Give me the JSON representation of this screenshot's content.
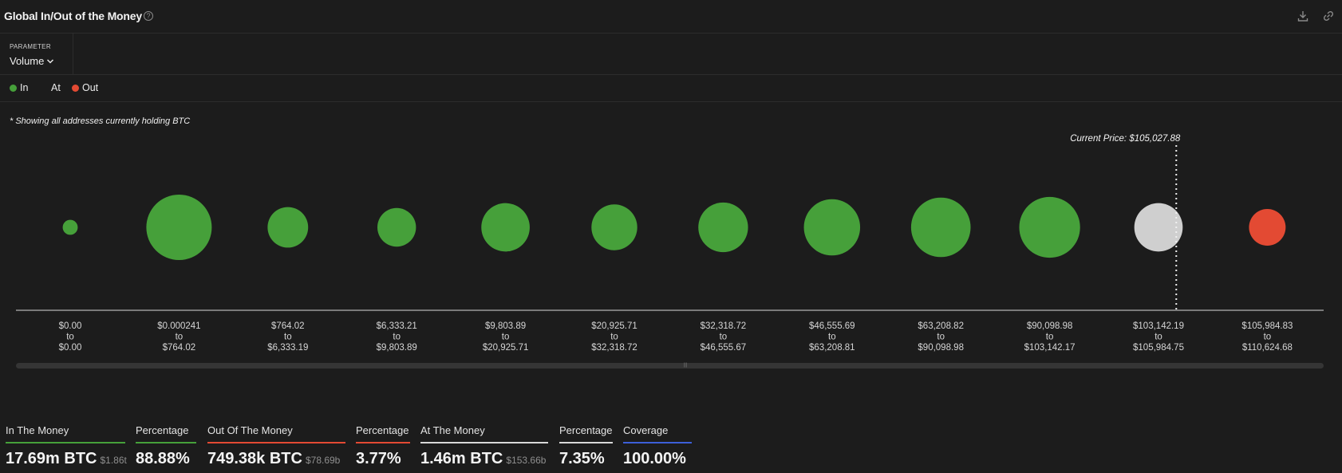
{
  "header": {
    "title": "Global In/Out of the Money",
    "help_icon": "question-circle-icon",
    "actions": [
      "download-icon",
      "link-icon"
    ]
  },
  "parameter": {
    "label": "PARAMETER",
    "value": "Volume"
  },
  "legend": [
    {
      "label": "In",
      "color": "#46a03a"
    },
    {
      "label": "At",
      "color": "#cfcfcf"
    },
    {
      "label": "Out",
      "color": "#e34a33"
    }
  ],
  "note": "* Showing all addresses currently holding BTC",
  "chart_data": {
    "type": "bubble",
    "current_price_label": "Current Price: $105,027.88",
    "current_price": 105027.88,
    "categories": [
      {
        "from": "$0.00",
        "to": "$0.00",
        "status": "in",
        "relative_size": 0.23
      },
      {
        "from": "$0.000241",
        "to": "$764.02",
        "status": "in",
        "relative_size": 1.0
      },
      {
        "from": "$764.02",
        "to": "$6,333.19",
        "status": "in",
        "relative_size": 0.62
      },
      {
        "from": "$6,333.21",
        "to": "$9,803.89",
        "status": "in",
        "relative_size": 0.59
      },
      {
        "from": "$9,803.89",
        "to": "$20,925.71",
        "status": "in",
        "relative_size": 0.74
      },
      {
        "from": "$20,925.71",
        "to": "$32,318.72",
        "status": "in",
        "relative_size": 0.7
      },
      {
        "from": "$32,318.72",
        "to": "$46,555.67",
        "status": "in",
        "relative_size": 0.76
      },
      {
        "from": "$46,555.69",
        "to": "$63,208.81",
        "status": "in",
        "relative_size": 0.86
      },
      {
        "from": "$63,208.82",
        "to": "$90,098.98",
        "status": "in",
        "relative_size": 0.91
      },
      {
        "from": "$90,098.98",
        "to": "$103,142.17",
        "status": "in",
        "relative_size": 0.93
      },
      {
        "from": "$103,142.19",
        "to": "$105,984.75",
        "status": "at",
        "relative_size": 0.74
      },
      {
        "from": "$105,984.83",
        "to": "$110,624.68",
        "status": "out",
        "relative_size": 0.56
      }
    ],
    "range_connector": "to",
    "colors": {
      "in": "#46a03a",
      "at": "#cfcfcf",
      "out": "#e34a33"
    },
    "grid": false
  },
  "stats": [
    {
      "label": "In The Money",
      "value": "17.69m BTC",
      "sub": "$1.86t",
      "color": "#46a03a"
    },
    {
      "label": "Percentage",
      "value": "88.88%",
      "sub": "",
      "color": "#46a03a"
    },
    {
      "label": "Out Of The Money",
      "value": "749.38k BTC",
      "sub": "$78.69b",
      "color": "#e34a33"
    },
    {
      "label": "Percentage",
      "value": "3.77%",
      "sub": "",
      "color": "#e34a33"
    },
    {
      "label": "At The Money",
      "value": "1.46m BTC",
      "sub": "$153.66b",
      "color": "#d8d8d8"
    },
    {
      "label": "Percentage",
      "value": "7.35%",
      "sub": "",
      "color": "#d8d8d8"
    },
    {
      "label": "Coverage",
      "value": "100.00%",
      "sub": "",
      "color": "#3d5fd8"
    }
  ]
}
